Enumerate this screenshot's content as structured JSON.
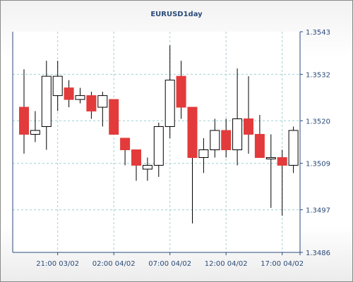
{
  "chart_data": {
    "type": "candlestick",
    "title": "EURUSD1day",
    "ylim": [
      1.3486,
      1.3543
    ],
    "yticks": [
      "1.3486",
      "1.3497",
      "1.3509",
      "1.3520",
      "1.3532",
      "1.3543"
    ],
    "xticks": [
      {
        "label": "21:00 03/02",
        "index": 3
      },
      {
        "label": "02:00 04/02",
        "index": 8
      },
      {
        "label": "07:00 04/02",
        "index": 13
      },
      {
        "label": "12:00 04/02",
        "index": 18
      },
      {
        "label": "17:00 04/02",
        "index": 23
      }
    ],
    "grid": true,
    "colors": {
      "up": "#ffffff",
      "down": "#e33b3b",
      "wick": "#000000",
      "grid": "#9fd0d0",
      "text": "#2a4a78"
    },
    "candles": [
      {
        "open": 1.35235,
        "high": 1.35333,
        "low": 1.35115,
        "close": 1.35165
      },
      {
        "open": 1.35165,
        "high": 1.35225,
        "low": 1.35145,
        "close": 1.35175
      },
      {
        "open": 1.35185,
        "high": 1.35355,
        "low": 1.35125,
        "close": 1.35315
      },
      {
        "open": 1.35265,
        "high": 1.35355,
        "low": 1.35225,
        "close": 1.35315
      },
      {
        "open": 1.35285,
        "high": 1.35305,
        "low": 1.35235,
        "close": 1.35255
      },
      {
        "open": 1.35255,
        "high": 1.35285,
        "low": 1.35245,
        "close": 1.35265
      },
      {
        "open": 1.35265,
        "high": 1.35275,
        "low": 1.35205,
        "close": 1.35225
      },
      {
        "open": 1.35235,
        "high": 1.35275,
        "low": 1.35185,
        "close": 1.35265
      },
      {
        "open": 1.35255,
        "high": 1.35255,
        "low": 1.35165,
        "close": 1.35165
      },
      {
        "open": 1.35155,
        "high": 1.35155,
        "low": 1.35085,
        "close": 1.35125
      },
      {
        "open": 1.35125,
        "high": 1.35125,
        "low": 1.35045,
        "close": 1.35085
      },
      {
        "open": 1.35075,
        "high": 1.35105,
        "low": 1.35045,
        "close": 1.35085
      },
      {
        "open": 1.35085,
        "high": 1.35195,
        "low": 1.35055,
        "close": 1.35185
      },
      {
        "open": 1.35185,
        "high": 1.35395,
        "low": 1.35155,
        "close": 1.35305
      },
      {
        "open": 1.35315,
        "high": 1.35355,
        "low": 1.35205,
        "close": 1.35235
      },
      {
        "open": 1.35235,
        "high": 1.35235,
        "low": 1.34935,
        "close": 1.35105
      },
      {
        "open": 1.35105,
        "high": 1.35155,
        "low": 1.35065,
        "close": 1.35125
      },
      {
        "open": 1.35125,
        "high": 1.35205,
        "low": 1.35105,
        "close": 1.35175
      },
      {
        "open": 1.35175,
        "high": 1.35205,
        "low": 1.35105,
        "close": 1.35125
      },
      {
        "open": 1.35125,
        "high": 1.35335,
        "low": 1.35085,
        "close": 1.35205
      },
      {
        "open": 1.35205,
        "high": 1.35315,
        "low": 1.35115,
        "close": 1.35165
      },
      {
        "open": 1.35165,
        "high": 1.35215,
        "low": 1.35105,
        "close": 1.35105
      },
      {
        "open": 1.35105,
        "high": 1.35165,
        "low": 1.34975,
        "close": 1.35105
      },
      {
        "open": 1.35105,
        "high": 1.35125,
        "low": 1.34955,
        "close": 1.35085
      },
      {
        "open": 1.35085,
        "high": 1.35185,
        "low": 1.35065,
        "close": 1.35175
      }
    ]
  }
}
